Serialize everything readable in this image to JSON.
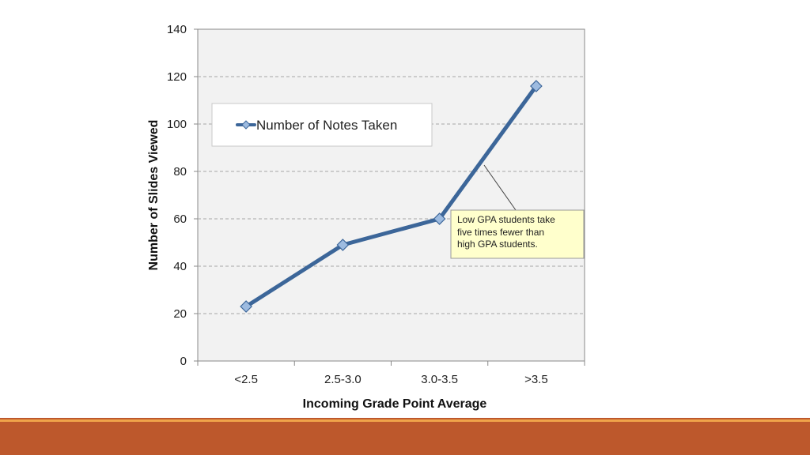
{
  "chart_data": {
    "type": "line",
    "title": "",
    "xlabel": "Incoming Grade Point Average",
    "ylabel": "Number of Slides Viewed",
    "categories": [
      "<2.5",
      "2.5-3.0",
      "3.0-3.5",
      ">3.5"
    ],
    "series": [
      {
        "name": "Number of Notes Taken",
        "values": [
          23,
          49,
          60,
          116
        ],
        "color": "#3c6699",
        "marker": "diamond"
      }
    ],
    "ylim": [
      0,
      140
    ],
    "yticks": [
      0,
      20,
      40,
      60,
      80,
      100,
      120,
      140
    ],
    "grid": true,
    "legend_position": "top-left",
    "annotation": {
      "text_lines": [
        "Low GPA students take",
        "five times  fewer than",
        "high GPA students."
      ],
      "target_category": ">3.5"
    }
  },
  "colors": {
    "plot_background": "#f2f2f2",
    "line": "#3c6699",
    "marker_fill": "#9dbbe0",
    "callout_fill": "#ffffcc",
    "footer_band": "#bd582c",
    "footer_line": "#f0a34a"
  }
}
